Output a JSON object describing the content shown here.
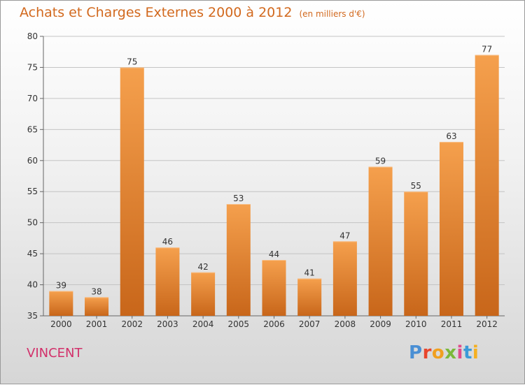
{
  "header": {
    "title": "Achats et Charges Externes 2000 à 2012",
    "subtitle": "(en milliers d'€)"
  },
  "footer": {
    "commune": "VINCENT",
    "brand_letters": [
      "P",
      "r",
      "o",
      "x",
      "i",
      "t",
      "i"
    ]
  },
  "colors": {
    "bar_top": "#f5a04d",
    "bar_bottom": "#c8661a",
    "title": "#d2691e",
    "commune": "#d2306a",
    "brand": [
      "#4a8fd4",
      "#e8452c",
      "#f0a020",
      "#7ab83a",
      "#e04c8c",
      "#3a9ad8",
      "#f5b020"
    ]
  },
  "chart_data": {
    "type": "bar",
    "title": "Achats et Charges Externes 2000 à 2012",
    "subtitle": "(en milliers d'€)",
    "categories": [
      "2000",
      "2001",
      "2002",
      "2003",
      "2004",
      "2005",
      "2006",
      "2007",
      "2008",
      "2009",
      "2010",
      "2011",
      "2012"
    ],
    "values": [
      39,
      38,
      75,
      46,
      42,
      53,
      44,
      41,
      47,
      59,
      55,
      63,
      77
    ],
    "ylim": [
      35,
      80
    ],
    "yticks": [
      35,
      40,
      45,
      50,
      55,
      60,
      65,
      70,
      75,
      80
    ],
    "grid": true,
    "data_labels": true
  }
}
